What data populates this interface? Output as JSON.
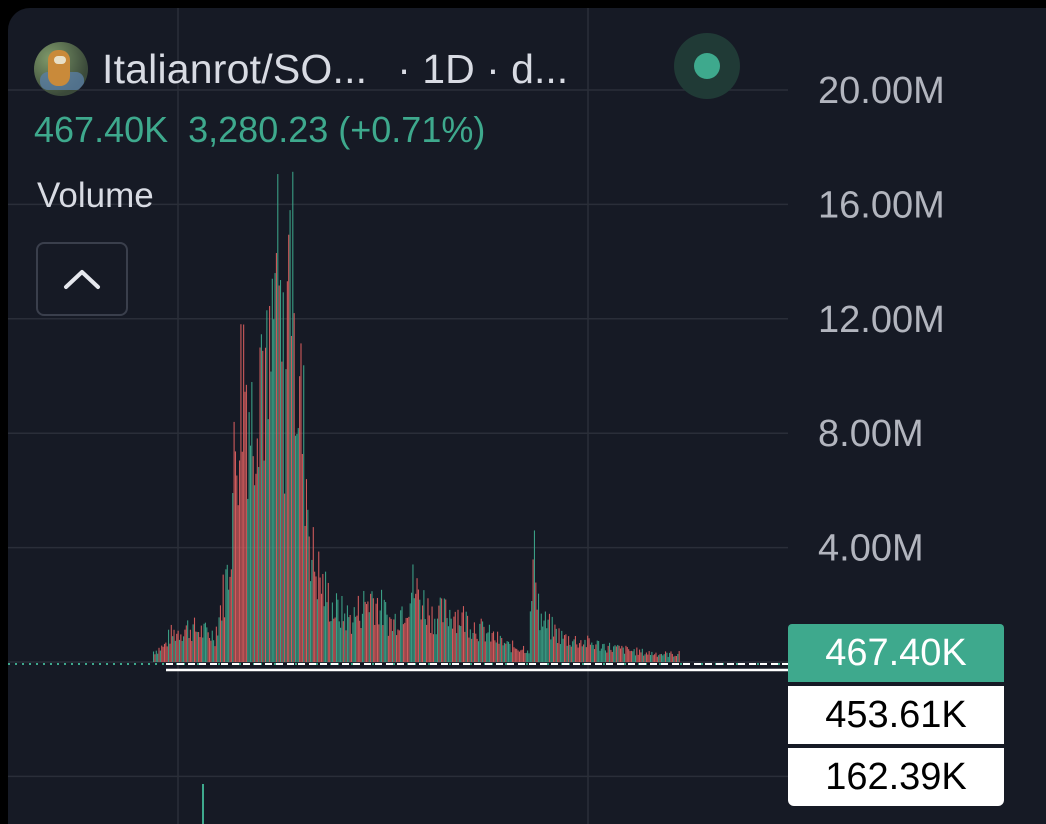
{
  "header": {
    "pair_title": "Italianrot/SO...",
    "interval": "· 1D · d...",
    "last_volume": "467.40K",
    "price_change": "3,280.23 (+0.71%)"
  },
  "indicator": {
    "label": "Volume"
  },
  "icons": {
    "avatar": "token-avatar-icon",
    "live": "live-status-dot-icon",
    "collapse": "chevron-up-icon"
  },
  "colors": {
    "background": "#161a25",
    "up": "#3ea98d",
    "down": "#e0605f",
    "grid": "#2a2e39",
    "text": "#d8dbe3"
  },
  "price_tags": {
    "current": "467.40K",
    "mid": "453.61K",
    "low": "162.39K"
  },
  "chart_data": {
    "type": "bar",
    "series_name": "Volume",
    "y_unit": "M",
    "ylim": [
      0,
      20
    ],
    "y_ticks": [
      {
        "label": "20.00M",
        "value": 20
      },
      {
        "label": "16.00M",
        "value": 16
      },
      {
        "label": "12.00M",
        "value": 12
      },
      {
        "label": "8.00M",
        "value": 8
      },
      {
        "label": "4.00M",
        "value": 4
      }
    ],
    "grid": true,
    "reference_lines": [
      {
        "label": "467.40K",
        "value": 0.4674,
        "style": "dotted",
        "color": "#3ea98d"
      },
      {
        "label": "453.61K",
        "value": 0.4536,
        "style": "dashed",
        "color": "#ffffff"
      },
      {
        "label": "162.39K",
        "value": 0.1624,
        "style": "solid",
        "color": "#ffffff"
      }
    ],
    "profile": [
      {
        "i": 0,
        "v": 0.4
      },
      {
        "i": 8,
        "v": 0.6
      },
      {
        "i": 12,
        "v": 1.0
      },
      {
        "i": 25,
        "v": 1.3
      },
      {
        "i": 45,
        "v": 1.0
      },
      {
        "i": 55,
        "v": 3.5
      },
      {
        "i": 60,
        "v": 8.0
      },
      {
        "i": 66,
        "v": 11.5
      },
      {
        "i": 72,
        "v": 9.0
      },
      {
        "i": 78,
        "v": 12.5
      },
      {
        "i": 84,
        "v": 9.5
      },
      {
        "i": 90,
        "v": 14.0
      },
      {
        "i": 96,
        "v": 10.0
      },
      {
        "i": 100,
        "v": 15.5
      },
      {
        "i": 104,
        "v": 11.5
      },
      {
        "i": 110,
        "v": 8.5
      },
      {
        "i": 116,
        "v": 4.0
      },
      {
        "i": 124,
        "v": 2.8
      },
      {
        "i": 132,
        "v": 2.0
      },
      {
        "i": 145,
        "v": 1.6
      },
      {
        "i": 160,
        "v": 2.5
      },
      {
        "i": 175,
        "v": 1.4
      },
      {
        "i": 190,
        "v": 2.8
      },
      {
        "i": 205,
        "v": 1.7
      },
      {
        "i": 220,
        "v": 1.9
      },
      {
        "i": 240,
        "v": 1.2
      },
      {
        "i": 260,
        "v": 0.6
      },
      {
        "i": 275,
        "v": 0.5
      },
      {
        "i": 279,
        "v": 4.5
      },
      {
        "i": 283,
        "v": 1.6
      },
      {
        "i": 300,
        "v": 0.9
      },
      {
        "i": 320,
        "v": 0.7
      },
      {
        "i": 340,
        "v": 0.5
      },
      {
        "i": 360,
        "v": 0.35
      },
      {
        "i": 375,
        "v": 0.3
      },
      {
        "i": 385,
        "v": 0.3
      }
    ],
    "bar_count": 386
  }
}
